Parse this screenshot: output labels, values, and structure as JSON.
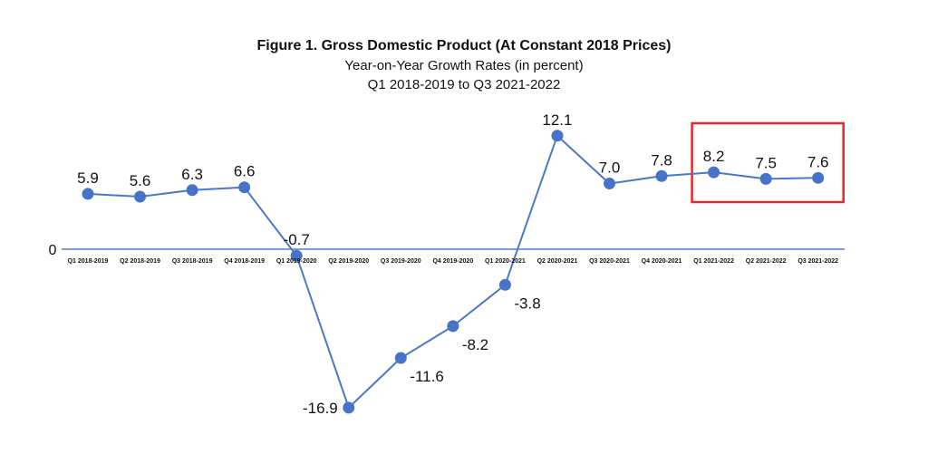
{
  "chart_data": {
    "type": "line",
    "title": "Figure 1. Gross Domestic Product (At Constant 2018 Prices)",
    "subtitle_line1": "Year-on-Year Growth Rates (in percent)",
    "subtitle_line2": "Q1 2018-2019 to Q3 2021-2022",
    "categories": [
      "Q1 2018-2019",
      "Q2 2018-2019",
      "Q3 2018-2019",
      "Q4 2018-2019",
      "Q1 2019-2020",
      "Q2 2019-2020",
      "Q3 2019-2020",
      "Q4 2019-2020",
      "Q1 2020-2021",
      "Q2 2020-2021",
      "Q3 2020-2021",
      "Q4 2020-2021",
      "Q1 2021-2022",
      "Q2 2021-2022",
      "Q3 2021-2022"
    ],
    "values": [
      5.9,
      5.6,
      6.3,
      6.6,
      -0.7,
      -16.9,
      -11.6,
      -8.2,
      -3.8,
      12.1,
      7.0,
      7.8,
      8.2,
      7.5,
      7.6
    ],
    "value_labels": [
      "5.9",
      "5.6",
      "6.3",
      "6.6",
      "-0.7",
      "-16.9",
      "-11.6",
      "-8.2",
      "-3.8",
      "12.1",
      "7.0",
      "7.8",
      "8.2",
      "7.5",
      "7.6"
    ],
    "zero_label": "0",
    "xlabel": "",
    "ylabel": "",
    "grid": false,
    "legend": "none",
    "highlight": {
      "from_category": "Q1 2021-2022",
      "to_category": "Q3 2021-2022",
      "color": "#e8262a"
    },
    "colors": {
      "line": "#4a78c8",
      "marker": "#4673c7",
      "axis": "#4f7fd0"
    }
  }
}
